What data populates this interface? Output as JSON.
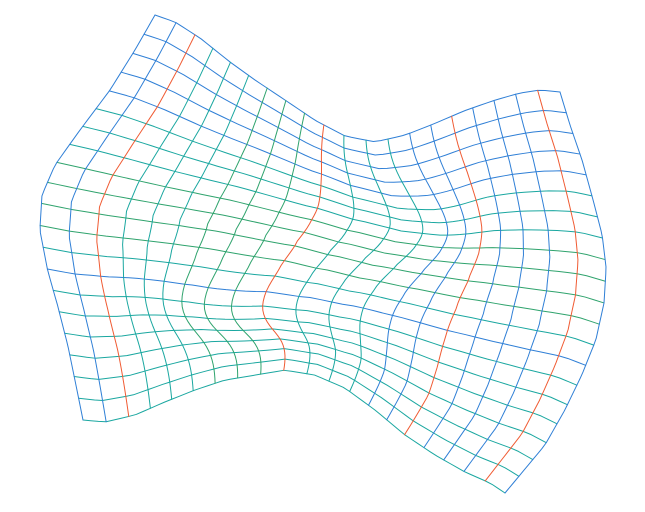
{
  "figure": {
    "description_type": "warped-grid-surface",
    "rows": 20,
    "cols": 20,
    "colors": {
      "blue": "#2f7fd6",
      "teal": "#1aa7a0",
      "green": "#2fa36d",
      "orange": "#f05b33",
      "background": "#ffffff"
    }
  }
}
